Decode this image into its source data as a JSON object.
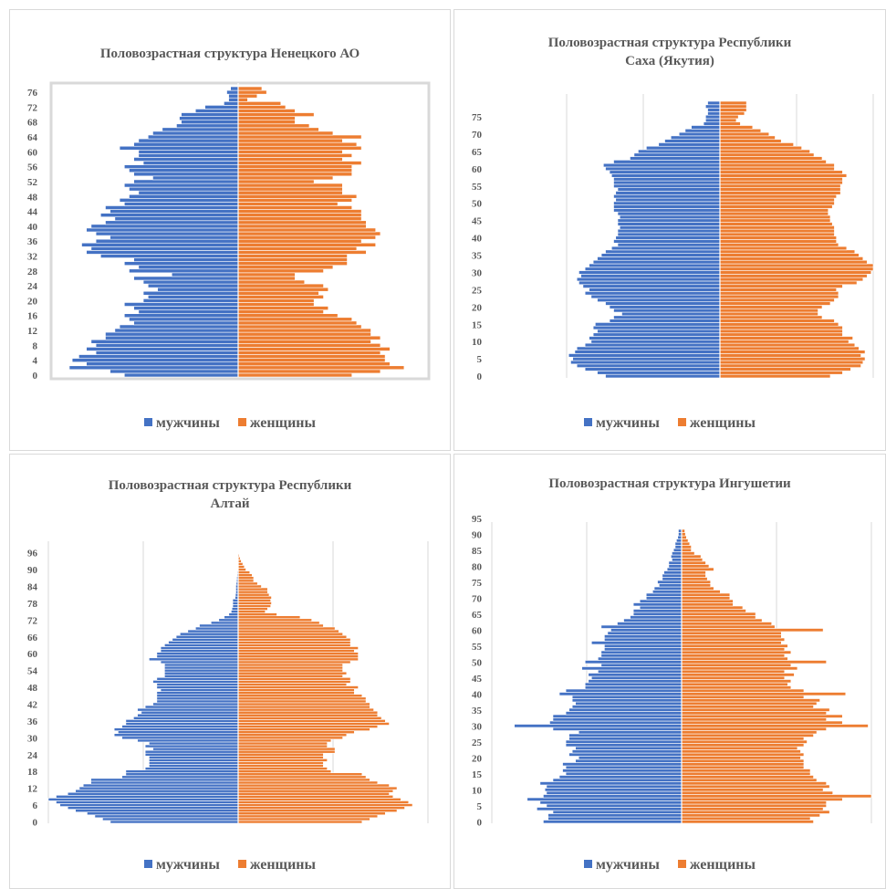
{
  "colors": {
    "male": "#4472c4",
    "female": "#ed7d31",
    "text": "#595959",
    "grid": "#d9d9d9"
  },
  "chart_data": [
    {
      "type": "bar",
      "orientation": "horizontal-pyramid",
      "title_lines": [
        "Половозрастная структура Ненецкого АО"
      ],
      "age_max": 77,
      "tick_step": 4,
      "tick_labels": [
        "0",
        "4",
        "8",
        "12",
        "16",
        "20",
        "24",
        "28",
        "32",
        "36",
        "40",
        "44",
        "48",
        "52",
        "56",
        "60",
        "64",
        "68",
        "72",
        "76"
      ],
      "grid": false,
      "legend_position": "bottom",
      "series": [
        {
          "name": "мужчины",
          "key": "male",
          "values": [
            120,
            135,
            178,
            160,
            175,
            168,
            150,
            160,
            150,
            155,
            140,
            140,
            130,
            125,
            110,
            115,
            120,
            105,
            110,
            120,
            100,
            95,
            100,
            85,
            95,
            100,
            110,
            70,
            115,
            105,
            120,
            110,
            145,
            160,
            155,
            165,
            150,
            135,
            150,
            160,
            155,
            140,
            130,
            145,
            135,
            140,
            120,
            125,
            115,
            105,
            115,
            120,
            110,
            90,
            110,
            115,
            120,
            100,
            110,
            105,
            105,
            125,
            110,
            105,
            95,
            90,
            80,
            65,
            60,
            62,
            60,
            45,
            35,
            15,
            10,
            10,
            12,
            8
          ]
        },
        {
          "name": "женщины",
          "key": "female",
          "values": [
            120,
            150,
            175,
            160,
            155,
            155,
            150,
            160,
            150,
            140,
            150,
            140,
            140,
            130,
            125,
            120,
            105,
            90,
            95,
            80,
            80,
            90,
            85,
            95,
            90,
            70,
            60,
            60,
            90,
            100,
            115,
            115,
            115,
            135,
            125,
            145,
            130,
            145,
            150,
            145,
            135,
            135,
            130,
            130,
            130,
            120,
            105,
            120,
            125,
            110,
            110,
            110,
            80,
            100,
            120,
            120,
            120,
            130,
            110,
            120,
            110,
            130,
            125,
            110,
            130,
            100,
            85,
            75,
            60,
            60,
            80,
            60,
            50,
            45,
            10,
            20,
            30,
            25
          ]
        }
      ]
    },
    {
      "type": "bar",
      "orientation": "horizontal-pyramid",
      "title_lines": [
        "Половозрастная структура Республики",
        "Саха (Якутия)"
      ],
      "age_max": 79,
      "tick_step": 5,
      "tick_labels": [
        "0",
        "5",
        "10",
        "15",
        "20",
        "25",
        "30",
        "35",
        "40",
        "45",
        "50",
        "55",
        "60",
        "65",
        "70",
        "75"
      ],
      "grid": true,
      "legend_position": "bottom",
      "series": [
        {
          "name": "мужчины",
          "key": "male",
          "values": [
            28000,
            30000,
            33000,
            35000,
            36500,
            36000,
            37000,
            35500,
            35000,
            33000,
            31500,
            32000,
            31000,
            30000,
            31000,
            30500,
            27000,
            26000,
            24000,
            26000,
            27000,
            28000,
            30000,
            31500,
            33000,
            32000,
            33500,
            34500,
            35000,
            34000,
            34500,
            33000,
            32000,
            31000,
            30000,
            29000,
            28000,
            26500,
            25000,
            26000,
            25500,
            25000,
            25000,
            24500,
            25000,
            25000,
            24500,
            25000,
            26000,
            26000,
            26000,
            25500,
            26000,
            25500,
            25000,
            26000,
            26000,
            26000,
            26500,
            27000,
            28000,
            28500,
            26000,
            22000,
            21000,
            20000,
            18000,
            15000,
            13500,
            12000,
            10000,
            8500,
            7000,
            4000,
            3500,
            3500,
            3000,
            3000,
            3500,
            3000
          ]
        },
        {
          "name": "женщины",
          "key": "female",
          "values": [
            27000,
            30000,
            32000,
            34500,
            35000,
            35500,
            34500,
            35500,
            34000,
            33000,
            31500,
            32500,
            30000,
            30000,
            30000,
            29000,
            28000,
            25000,
            24000,
            24000,
            25000,
            27000,
            28000,
            29000,
            29000,
            28500,
            30000,
            33500,
            35000,
            36000,
            37000,
            37500,
            37500,
            36000,
            35000,
            34000,
            33000,
            31000,
            29000,
            28500,
            28500,
            28000,
            28000,
            28000,
            27500,
            27000,
            27000,
            26500,
            26500,
            27500,
            28000,
            28000,
            28500,
            29500,
            29500,
            29500,
            30000,
            30000,
            31000,
            30000,
            28000,
            28000,
            26000,
            25000,
            23000,
            22000,
            20000,
            18000,
            15000,
            13500,
            12000,
            10000,
            8000,
            5000,
            4000,
            4500,
            6000,
            6500,
            6500,
            6500
          ]
        }
      ]
    },
    {
      "type": "bar",
      "orientation": "horizontal-pyramid",
      "title_lines": [
        "Половозрастная структура Республики",
        "Алтай"
      ],
      "age_max": 97,
      "tick_step": 6,
      "tick_labels": [
        "0",
        "6",
        "12",
        "18",
        "24",
        "30",
        "36",
        "42",
        "48",
        "54",
        "60",
        "66",
        "72",
        "78",
        "84",
        "90",
        "96"
      ],
      "grid": true,
      "legend_position": "bottom",
      "series": [
        {
          "name": "мужчины",
          "key": "male",
          "values": [
            1650,
            1750,
            1850,
            1950,
            2100,
            2200,
            2300,
            2350,
            2450,
            2350,
            2200,
            2100,
            2050,
            2000,
            1900,
            1900,
            1500,
            1450,
            1450,
            1200,
            1150,
            1150,
            1150,
            1150,
            1200,
            1200,
            1100,
            1200,
            1150,
            1300,
            1500,
            1600,
            1550,
            1600,
            1500,
            1450,
            1450,
            1350,
            1300,
            1250,
            1300,
            1200,
            1100,
            1050,
            1050,
            1050,
            1050,
            1000,
            1050,
            1050,
            1100,
            1050,
            950,
            950,
            950,
            950,
            950,
            1000,
            1150,
            1050,
            1050,
            1000,
            1000,
            950,
            900,
            850,
            800,
            750,
            650,
            550,
            500,
            350,
            250,
            180,
            120,
            90,
            80,
            70,
            70,
            70,
            40,
            35,
            30,
            30,
            30,
            25,
            20,
            18,
            14,
            12,
            8,
            6,
            4,
            3,
            2,
            1,
            1,
            1
          ]
        },
        {
          "name": "женщины",
          "key": "female",
          "values": [
            1600,
            1700,
            1800,
            1900,
            2050,
            2150,
            2250,
            2200,
            2100,
            2000,
            1950,
            2000,
            2050,
            1950,
            1800,
            1700,
            1650,
            1600,
            1200,
            1150,
            1100,
            1100,
            1150,
            1100,
            1100,
            1250,
            1250,
            1150,
            1150,
            1200,
            1350,
            1400,
            1500,
            1700,
            1800,
            1950,
            1900,
            1850,
            1800,
            1800,
            1750,
            1700,
            1700,
            1650,
            1650,
            1600,
            1500,
            1500,
            1550,
            1400,
            1450,
            1450,
            1350,
            1400,
            1350,
            1350,
            1350,
            1450,
            1550,
            1550,
            1550,
            1500,
            1550,
            1450,
            1450,
            1450,
            1400,
            1350,
            1300,
            1250,
            1100,
            1050,
            950,
            800,
            500,
            350,
            380,
            420,
            430,
            420,
            430,
            400,
            380,
            380,
            300,
            250,
            200,
            200,
            180,
            150,
            100,
            80,
            60,
            40,
            25,
            15,
            8,
            5
          ]
        }
      ]
    },
    {
      "type": "bar",
      "orientation": "horizontal-pyramid",
      "title_lines": [
        "Половозрастная структура Ингушетии"
      ],
      "age_max": 91,
      "tick_step": 5,
      "tick_labels": [
        "0",
        "5",
        "10",
        "15",
        "20",
        "25",
        "30",
        "35",
        "40",
        "45",
        "50",
        "55",
        "60",
        "65",
        "70",
        "75",
        "80",
        "85",
        "90",
        "95"
      ],
      "grid": true,
      "legend_position": "bottom",
      "series": [
        {
          "name": "мужчины",
          "key": "male",
          "values": [
            4300,
            4150,
            4150,
            4000,
            4500,
            4200,
            4400,
            4800,
            4300,
            4200,
            4250,
            4200,
            4400,
            4000,
            3800,
            3600,
            3700,
            3600,
            3700,
            3300,
            3200,
            3500,
            3400,
            3300,
            3600,
            3600,
            3500,
            3500,
            3200,
            4000,
            5200,
            4100,
            4000,
            4000,
            3600,
            3500,
            3400,
            3300,
            3400,
            3400,
            3800,
            3600,
            3000,
            3000,
            2900,
            2800,
            2900,
            2600,
            3100,
            2500,
            3000,
            2600,
            2500,
            2500,
            2400,
            2400,
            2800,
            2400,
            2400,
            2300,
            2200,
            2500,
            2000,
            1800,
            1600,
            1500,
            1500,
            1300,
            1500,
            1300,
            1100,
            1100,
            900,
            850,
            700,
            750,
            600,
            600,
            550,
            450,
            400,
            400,
            300,
            330,
            300,
            250,
            200,
            200,
            160,
            120,
            100,
            100
          ]
        },
        {
          "name": "женщины",
          "key": "female",
          "values": [
            4100,
            4000,
            4300,
            4600,
            4400,
            4500,
            4500,
            5000,
            5900,
            4700,
            4400,
            4600,
            4500,
            4200,
            4100,
            4000,
            4000,
            3800,
            3800,
            3800,
            3700,
            3800,
            3700,
            3600,
            3800,
            3900,
            3800,
            4100,
            4200,
            4500,
            5800,
            5000,
            4500,
            5000,
            4500,
            4600,
            4100,
            4200,
            4300,
            3800,
            5100,
            3800,
            3400,
            3300,
            3400,
            3200,
            3500,
            3200,
            3600,
            3400,
            4500,
            3300,
            3200,
            3400,
            3200,
            3300,
            3100,
            3200,
            3100,
            3100,
            4400,
            2900,
            2800,
            2500,
            2300,
            2300,
            2000,
            1900,
            1600,
            1600,
            1500,
            1500,
            1200,
            1000,
            900,
            900,
            800,
            750,
            750,
            1000,
            850,
            750,
            650,
            600,
            400,
            300,
            300,
            250,
            200,
            150,
            120,
            100
          ]
        }
      ]
    }
  ]
}
